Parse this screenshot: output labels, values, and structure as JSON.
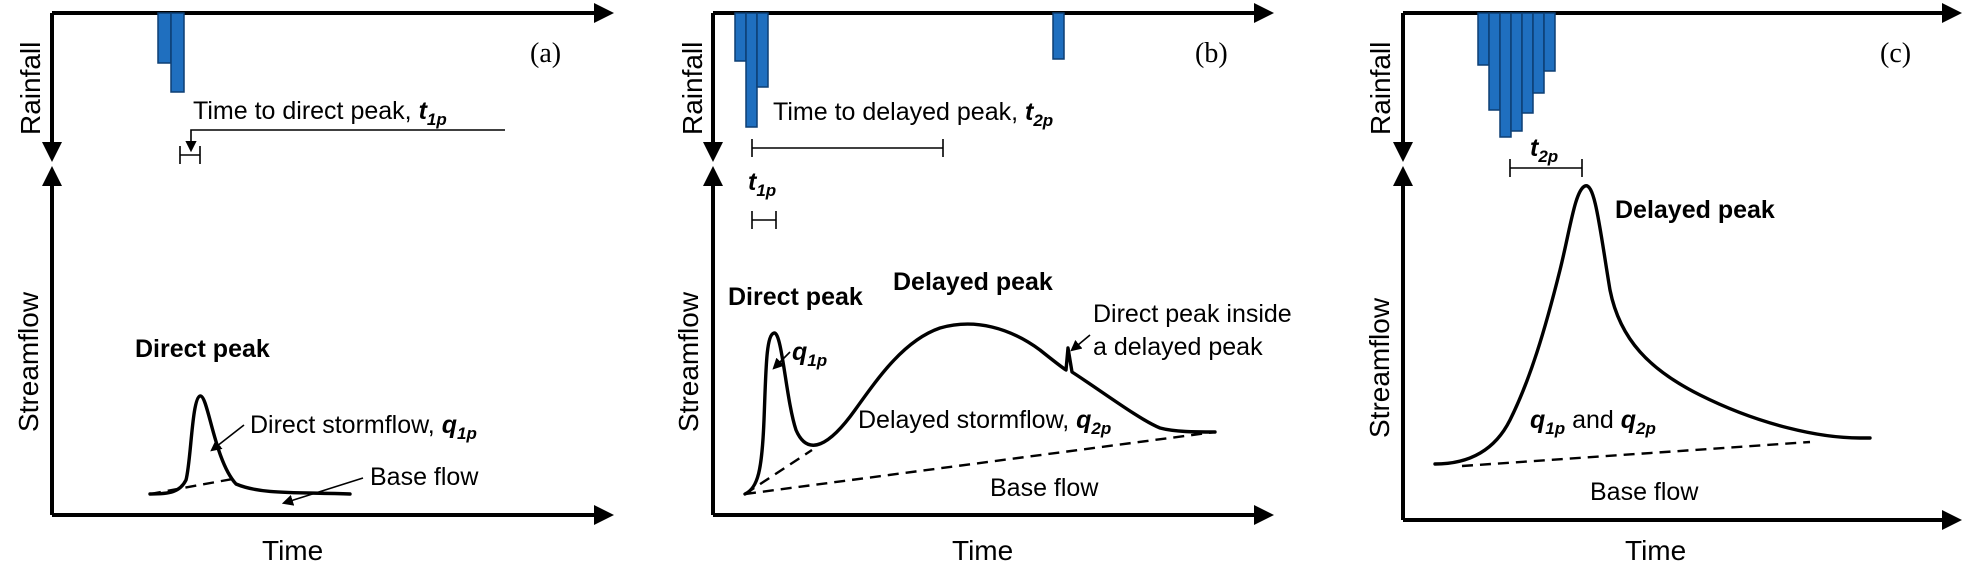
{
  "axes": {
    "rainfall": "Rainfall",
    "streamflow": "Streamflow",
    "time": "Time"
  },
  "colors": {
    "rain_bar": "#1f6fbf",
    "ink": "#000000"
  },
  "panels": {
    "a": {
      "tag": "(a)",
      "time_to_peak_text": "Time to direct peak, ",
      "t_main": "t",
      "t_sub": "1p",
      "peak_label": "Direct peak",
      "stormflow_text": "Direct stormflow, ",
      "q_main": "q",
      "q_sub": "1p",
      "base_flow": "Base flow"
    },
    "b": {
      "tag": "(b)",
      "time_to_peak_text": "Time to delayed peak, ",
      "t2_main": "t",
      "t2_sub": "2p",
      "t1_main": "t",
      "t1_sub": "1p",
      "direct_peak": "Direct peak",
      "delayed_peak": "Delayed peak",
      "inside_line1": "Direct peak inside",
      "inside_line2": "a delayed peak",
      "q1_main": "q",
      "q1_sub": "1p",
      "stormflow_text": "Delayed stormflow, ",
      "q2_main": "q",
      "q2_sub": "2p",
      "base_flow": "Base flow"
    },
    "c": {
      "tag": "(c)",
      "t2_main": "t",
      "t2_sub": "2p",
      "delayed_peak": "Delayed peak",
      "q1_main": "q",
      "q1_sub": "1p",
      "and_text": " and ",
      "q2_main": "q",
      "q2_sub": "2p",
      "base_flow": "Base flow"
    }
  }
}
